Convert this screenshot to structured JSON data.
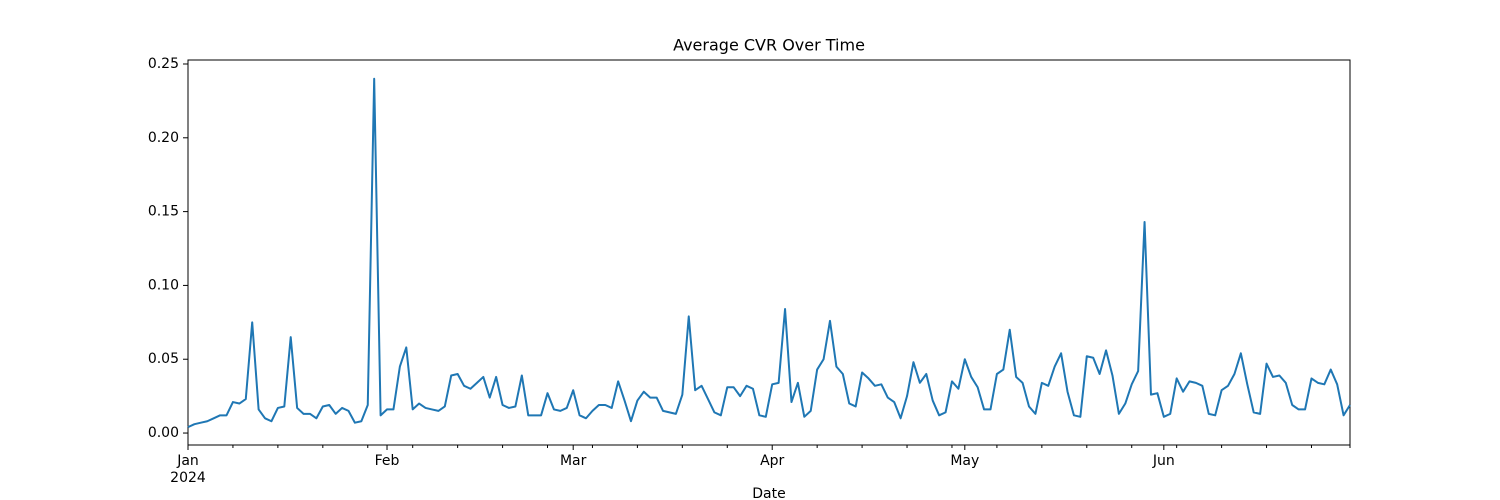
{
  "chart_data": {
    "type": "line",
    "title": "Average CVR Over Time",
    "x_label": "Date",
    "x_sublabel": "2024",
    "color": "#1f77b4",
    "categories": [
      "Jan",
      null,
      null,
      null,
      null,
      null,
      null,
      null,
      null,
      null,
      null,
      null,
      null,
      null,
      null,
      null,
      null,
      null,
      null,
      null,
      null,
      null,
      null,
      null,
      null,
      null,
      null,
      null,
      null,
      null,
      null,
      "Feb",
      null,
      null,
      null,
      null,
      null,
      null,
      null,
      null,
      null,
      null,
      null,
      null,
      null,
      null,
      null,
      null,
      null,
      null,
      null,
      null,
      null,
      null,
      null,
      null,
      null,
      null,
      null,
      null,
      "Mar",
      null,
      null,
      null,
      null,
      null,
      null,
      null,
      null,
      null,
      null,
      null,
      null,
      null,
      null,
      null,
      null,
      null,
      null,
      null,
      null,
      null,
      null,
      null,
      null,
      null,
      null,
      null,
      null,
      null,
      null,
      "Apr",
      null,
      null,
      null,
      null,
      null,
      null,
      null,
      null,
      null,
      null,
      null,
      null,
      null,
      null,
      null,
      null,
      null,
      null,
      null,
      null,
      null,
      null,
      null,
      null,
      null,
      null,
      null,
      null,
      null,
      "May",
      null,
      null,
      null,
      null,
      null,
      null,
      null,
      null,
      null,
      null,
      null,
      null,
      null,
      null,
      null,
      null,
      null,
      null,
      null,
      null,
      null,
      null,
      null,
      null,
      null,
      null,
      null,
      null,
      null,
      null,
      "Jun",
      null,
      null,
      null,
      null,
      null,
      null,
      null,
      null,
      null,
      null,
      null,
      null,
      null,
      null,
      null,
      null,
      null,
      null,
      null,
      null,
      null,
      null,
      null,
      null,
      null,
      null,
      null,
      null,
      null
    ],
    "values": [
      0.004,
      0.006,
      0.007,
      0.008,
      0.01,
      0.012,
      0.012,
      0.021,
      0.02,
      0.023,
      0.075,
      0.016,
      0.01,
      0.008,
      0.017,
      0.018,
      0.065,
      0.017,
      0.013,
      0.013,
      0.01,
      0.018,
      0.019,
      0.013,
      0.017,
      0.015,
      0.007,
      0.008,
      0.019,
      0.24,
      0.012,
      0.016,
      0.016,
      0.045,
      0.058,
      0.016,
      0.02,
      0.017,
      0.016,
      0.015,
      0.018,
      0.039,
      0.04,
      0.032,
      0.03,
      0.034,
      0.038,
      0.024,
      0.038,
      0.019,
      0.017,
      0.018,
      0.039,
      0.012,
      0.012,
      0.012,
      0.027,
      0.016,
      0.015,
      0.017,
      0.029,
      0.012,
      0.01,
      0.015,
      0.019,
      0.019,
      0.017,
      0.035,
      0.022,
      0.008,
      0.022,
      0.028,
      0.024,
      0.024,
      0.015,
      0.014,
      0.013,
      0.026,
      0.079,
      0.029,
      0.032,
      0.023,
      0.014,
      0.012,
      0.031,
      0.031,
      0.025,
      0.032,
      0.03,
      0.012,
      0.011,
      0.033,
      0.034,
      0.084,
      0.021,
      0.034,
      0.011,
      0.015,
      0.043,
      0.05,
      0.076,
      0.045,
      0.04,
      0.02,
      0.018,
      0.041,
      0.037,
      0.032,
      0.033,
      0.024,
      0.021,
      0.01,
      0.025,
      0.048,
      0.034,
      0.04,
      0.022,
      0.012,
      0.014,
      0.035,
      0.03,
      0.05,
      0.038,
      0.031,
      0.016,
      0.016,
      0.04,
      0.043,
      0.07,
      0.038,
      0.034,
      0.018,
      0.013,
      0.034,
      0.032,
      0.045,
      0.054,
      0.028,
      0.012,
      0.011,
      0.052,
      0.051,
      0.04,
      0.056,
      0.039,
      0.013,
      0.02,
      0.033,
      0.042,
      0.143,
      0.026,
      0.027,
      0.011,
      0.013,
      0.037,
      0.028,
      0.035,
      0.034,
      0.032,
      0.013,
      0.012,
      0.029,
      0.032,
      0.04,
      0.054,
      0.033,
      0.014,
      0.013,
      0.047,
      0.038,
      0.039,
      0.034,
      0.019,
      0.016,
      0.016,
      0.037,
      0.034,
      0.033,
      0.043,
      0.033,
      0.012,
      0.019
    ],
    "ylim": [
      -0.0081,
      0.2527
    ],
    "yticks": [
      {
        "value": 0,
        "label": "0.00"
      },
      0.05,
      {
        "value": 0.1,
        "label": "0.10"
      },
      0.15,
      {
        "value": 0.2,
        "label": "0.20"
      },
      0.25
    ],
    "grid": false
  }
}
